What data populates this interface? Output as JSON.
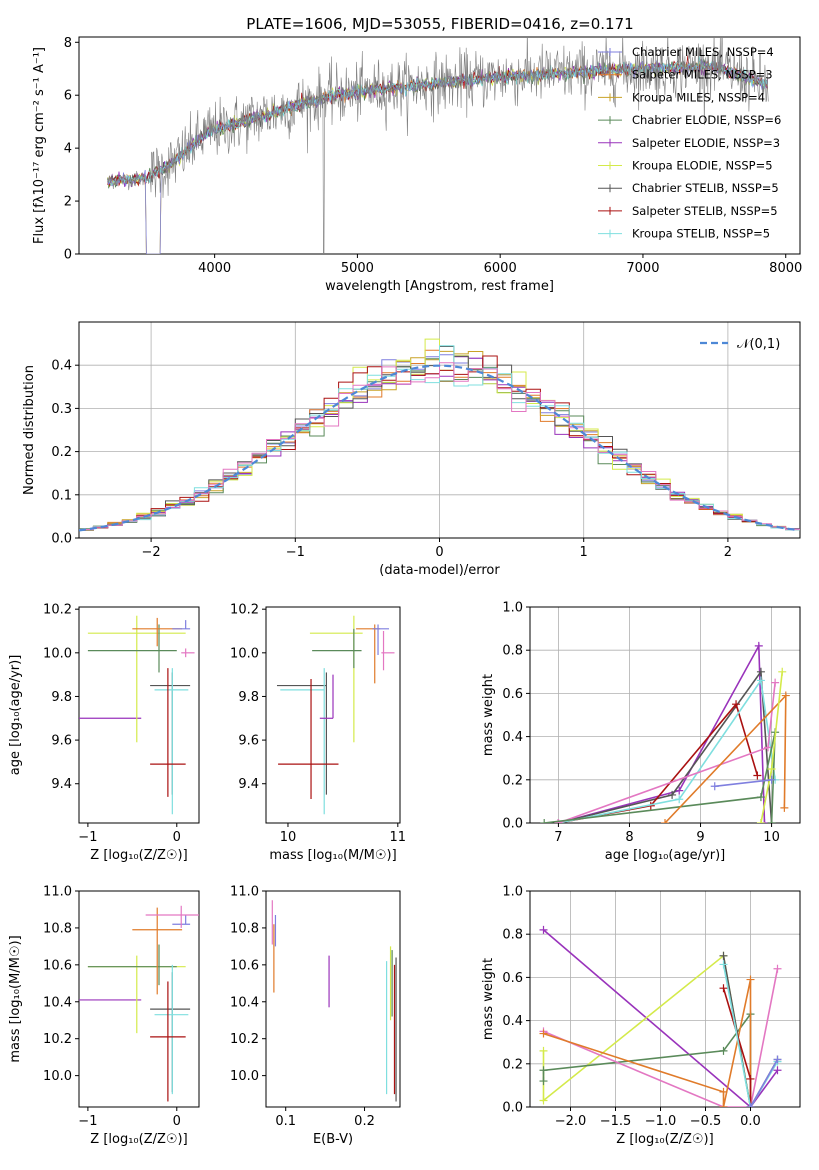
{
  "figure_title": "PLATE=1606, MJD=53055, FIBERID=0416, z=0.171",
  "colors": {
    "chabrier_miles": "#7f7fdf",
    "salpeter_miles": "#e07b2a",
    "kroupa_miles": "#c9a227",
    "chabrier_elodie": "#5a8a5a",
    "salpeter_elodie": "#9933bb",
    "kroupa_elodie": "#d4ea4a",
    "chabrier_stelib": "#555555",
    "salpeter_stelib": "#aa1111",
    "kroupa_stelib": "#7fdfdf",
    "pink": "#e377c2",
    "blue_dash": "#4d88d6",
    "data_gray": "#7f7f7f"
  },
  "chart_data": [
    {
      "id": "spectrum",
      "type": "line",
      "title": "PLATE=1606, MJD=53055, FIBERID=0416, z=0.171",
      "xlabel": "wavelength [Angstrom, rest frame]",
      "ylabel": "Flux [fλ10⁻¹⁷ erg cm⁻² s⁻¹ A⁻¹]",
      "xlim": [
        3050,
        8100
      ],
      "ylim": [
        0,
        8.2
      ],
      "xticks": [
        4000,
        5000,
        6000,
        7000,
        8000
      ],
      "yticks": [
        0,
        2,
        4,
        6,
        8
      ],
      "grid": false,
      "legend_position": "top-right",
      "legend": [
        "Chabrier MILES, NSSP=4",
        "Salpeter MILES, NSSP=3",
        "Kroupa MILES, NSSP=4",
        "Chabrier ELODIE, NSSP=6",
        "Salpeter ELODIE, NSSP=3",
        "Kroupa ELODIE, NSSP=5",
        "Chabrier STELIB, NSSP=5",
        "Salpeter STELIB, NSSP=5",
        "Kroupa STELIB, NSSP=5"
      ],
      "continuum": [
        [
          3250,
          2.75
        ],
        [
          3500,
          2.85
        ],
        [
          3700,
          3.4
        ],
        [
          3950,
          4.6
        ],
        [
          4200,
          5.0
        ],
        [
          4500,
          5.5
        ],
        [
          4800,
          5.95
        ],
        [
          5100,
          6.2
        ],
        [
          5500,
          6.4
        ],
        [
          6000,
          6.7
        ],
        [
          6500,
          6.85
        ],
        [
          7000,
          7.0
        ],
        [
          7500,
          7.1
        ],
        [
          7900,
          6.3
        ]
      ]
    },
    {
      "id": "residuals",
      "type": "line",
      "xlabel": "(data-model)/error",
      "ylabel": "Normed distribution",
      "xlim": [
        -2.5,
        2.5
      ],
      "ylim": [
        0,
        0.5
      ],
      "xticks": [
        -2,
        -1,
        0,
        1,
        2
      ],
      "yticks": [
        0.0,
        0.1,
        0.2,
        0.3,
        0.4
      ],
      "grid": true,
      "legend_position": "top-right",
      "legend": [
        "𝒩(0,1)"
      ],
      "gaussian": {
        "mean": 0,
        "sigma": 1
      }
    },
    {
      "id": "age_vs_z",
      "type": "scatter",
      "xlabel": "Z [log₁₀(Z/Z☉)]",
      "ylabel": "age  [log₁₀(age/yr)]",
      "xlim": [
        -1.1,
        0.25
      ],
      "ylim": [
        9.22,
        10.21
      ],
      "xticks": [
        -1,
        0
      ],
      "yticks": [
        9.4,
        9.6,
        9.8,
        10.0,
        10.2
      ],
      "grid": false,
      "points": [
        {
          "key": "salpeter_elodie",
          "x": -0.75,
          "xerr": [
            0.35,
            0.35
          ],
          "y": 9.7,
          "yerr": [
            0,
            0
          ]
        },
        {
          "key": "kroupa_elodie",
          "x": -0.45,
          "xerr": [
            0.55,
            0.55
          ],
          "y": 10.09,
          "yerr": [
            0.5,
            0.08
          ]
        },
        {
          "key": "chabrier_elodie",
          "x": -0.2,
          "xerr": [
            0.8,
            0.2
          ],
          "y": 10.01,
          "yerr": [
            0.1,
            0.12
          ]
        },
        {
          "key": "salpeter_miles",
          "x": -0.22,
          "xerr": [
            0.28,
            0.28
          ],
          "y": 10.11,
          "yerr": [
            0.08,
            0.05
          ]
        },
        {
          "key": "chabrier_miles",
          "x": 0.1,
          "xerr": [
            0.15,
            0.05
          ],
          "y": 10.11,
          "yerr": [
            0,
            0.04
          ]
        },
        {
          "key": "pink",
          "x": 0.1,
          "xerr": [
            0.05,
            0.1
          ],
          "y": 10.0,
          "yerr": [
            0.02,
            0.02
          ]
        },
        {
          "key": "chabrier_stelib",
          "x": -0.05,
          "xerr": [
            0.25,
            0.2
          ],
          "y": 9.85,
          "yerr": [
            0.5,
            0.06
          ]
        },
        {
          "key": "kroupa_stelib",
          "x": -0.05,
          "xerr": [
            0.2,
            0.18
          ],
          "y": 9.83,
          "yerr": [
            0.57,
            0.1
          ]
        },
        {
          "key": "salpeter_stelib",
          "x": -0.1,
          "xerr": [
            0.2,
            0.2
          ],
          "y": 9.49,
          "yerr": [
            0.15,
            0.44
          ]
        }
      ]
    },
    {
      "id": "age_vs_mass",
      "type": "scatter",
      "xlabel": "mass [log₁₀(M/M☉)]",
      "ylabel": "",
      "xlim": [
        9.8,
        11.02
      ],
      "ylim": [
        9.22,
        10.21
      ],
      "xticks": [
        10,
        11
      ],
      "yticks": [
        9.4,
        9.6,
        9.8,
        10.0,
        10.2
      ],
      "grid": false,
      "points": [
        {
          "key": "chabrier_stelib",
          "x": 10.35,
          "xerr": [
            0.45,
            0.0
          ],
          "y": 9.85,
          "yerr": [
            0.5,
            0.06
          ]
        },
        {
          "key": "kroupa_stelib",
          "x": 10.33,
          "xerr": [
            0.4,
            0.0
          ],
          "y": 9.83,
          "yerr": [
            0.57,
            0.1
          ]
        },
        {
          "key": "salpeter_stelib",
          "x": 10.21,
          "xerr": [
            0.3,
            0.25
          ],
          "y": 9.49,
          "yerr": [
            0.16,
            0.39
          ]
        },
        {
          "key": "kroupa_elodie",
          "x": 10.6,
          "xerr": [
            0.4,
            0.08
          ],
          "y": 10.09,
          "yerr": [
            0.5,
            0.08
          ]
        },
        {
          "key": "chabrier_elodie",
          "x": 10.6,
          "xerr": [
            0.38,
            0.07
          ],
          "y": 10.01,
          "yerr": [
            0.08,
            0.1
          ]
        },
        {
          "key": "salpeter_elodie",
          "x": 10.41,
          "xerr": [
            0.12,
            0.0
          ],
          "y": 9.7,
          "yerr": [
            0,
            0.2
          ]
        },
        {
          "key": "salpeter_miles",
          "x": 10.79,
          "xerr": [
            0.17,
            0.05
          ],
          "y": 10.11,
          "yerr": [
            0.25,
            0.02
          ]
        },
        {
          "key": "chabrier_miles",
          "x": 10.82,
          "xerr": [
            0.05,
            0.1
          ],
          "y": 10.11,
          "yerr": [
            0.12,
            0.02
          ]
        },
        {
          "key": "pink",
          "x": 10.87,
          "xerr": [
            0.02,
            0.1
          ],
          "y": 10.0,
          "yerr": [
            0.08,
            0.1
          ]
        }
      ]
    },
    {
      "id": "weight_vs_age",
      "type": "line",
      "xlabel": "age  [log₁₀(age/yr)]",
      "ylabel": "mass weight",
      "xlim": [
        6.6,
        10.4
      ],
      "ylim": [
        0,
        1
      ],
      "xticks": [
        7,
        8,
        9,
        10
      ],
      "yticks": [
        0.0,
        0.2,
        0.4,
        0.6,
        0.8,
        1.0
      ],
      "grid": true,
      "series": [
        {
          "key": "salpeter_elodie",
          "points": [
            [
              7.0,
              0.0
            ],
            [
              8.7,
              0.15
            ],
            [
              9.82,
              0.82
            ],
            [
              9.9,
              0.0
            ]
          ]
        },
        {
          "key": "chabrier_stelib",
          "points": [
            [
              7.0,
              0.0
            ],
            [
              8.6,
              0.13
            ],
            [
              9.85,
              0.7
            ],
            [
              10.0,
              0.0
            ]
          ]
        },
        {
          "key": "salpeter_stelib",
          "points": [
            [
              7.0,
              0.0
            ],
            [
              8.3,
              0.08
            ],
            [
              9.5,
              0.55
            ],
            [
              9.8,
              0.22
            ]
          ]
        },
        {
          "key": "kroupa_stelib",
          "points": [
            [
              7.0,
              0.0
            ],
            [
              8.7,
              0.11
            ],
            [
              9.85,
              0.66
            ],
            [
              10.05,
              0.2
            ]
          ]
        },
        {
          "key": "pink",
          "points": [
            [
              7.0,
              0.0
            ],
            [
              9.95,
              0.35
            ],
            [
              10.05,
              0.65
            ]
          ]
        },
        {
          "key": "chabrier_elodie",
          "points": [
            [
              6.8,
              0.0
            ],
            [
              9.85,
              0.12
            ],
            [
              10.05,
              0.42
            ],
            [
              10.0,
              0.0
            ]
          ]
        },
        {
          "key": "salpeter_miles",
          "points": [
            [
              8.5,
              0.0
            ],
            [
              10.2,
              0.59
            ],
            [
              10.18,
              0.07
            ]
          ]
        },
        {
          "key": "kroupa_elodie",
          "points": [
            [
              9.85,
              0.0
            ],
            [
              10.0,
              0.25
            ],
            [
              10.15,
              0.7
            ]
          ]
        },
        {
          "key": "chabrier_miles",
          "points": [
            [
              9.2,
              0.17
            ],
            [
              10.0,
              0.2
            ]
          ]
        }
      ]
    },
    {
      "id": "mass_vs_z",
      "type": "scatter",
      "xlabel": "Z [log₁₀(Z/Z☉)]",
      "ylabel": "mass [log₁₀(M/M☉)]",
      "xlim": [
        -1.1,
        0.25
      ],
      "ylim": [
        9.83,
        11.0
      ],
      "xticks": [
        -1,
        0
      ],
      "yticks": [
        10.0,
        10.2,
        10.4,
        10.6,
        10.8,
        11.0
      ],
      "grid": false,
      "points": [
        {
          "key": "salpeter_elodie",
          "x": -0.75,
          "xerr": [
            0.35,
            0.35
          ],
          "y": 10.41,
          "yerr": [
            0,
            0
          ]
        },
        {
          "key": "kroupa_elodie",
          "x": -0.45,
          "xerr": [
            0.55,
            0.55
          ],
          "y": 10.59,
          "yerr": [
            0.36,
            0.06
          ]
        },
        {
          "key": "chabrier_elodie",
          "x": -0.2,
          "xerr": [
            0.8,
            0.2
          ],
          "y": 10.59,
          "yerr": [
            0.1,
            0.12
          ]
        },
        {
          "key": "salpeter_miles",
          "x": -0.22,
          "xerr": [
            0.28,
            0.28
          ],
          "y": 10.79,
          "yerr": [
            0.35,
            0.12
          ]
        },
        {
          "key": "chabrier_miles",
          "x": 0.1,
          "xerr": [
            0.15,
            0.05
          ],
          "y": 10.82,
          "yerr": [
            0,
            0.05
          ]
        },
        {
          "key": "pink",
          "x": 0.05,
          "xerr": [
            0.4,
            0.2
          ],
          "y": 10.87,
          "yerr": [
            0.07,
            0.05
          ]
        },
        {
          "key": "chabrier_stelib",
          "x": -0.05,
          "xerr": [
            0.25,
            0.2
          ],
          "y": 10.36,
          "yerr": [
            0.45,
            0.2
          ]
        },
        {
          "key": "kroupa_stelib",
          "x": -0.05,
          "xerr": [
            0.2,
            0.18
          ],
          "y": 10.33,
          "yerr": [
            0.43,
            0.27
          ]
        },
        {
          "key": "salpeter_stelib",
          "x": -0.1,
          "xerr": [
            0.2,
            0.2
          ],
          "y": 10.21,
          "yerr": [
            0.35,
            0.3
          ]
        }
      ]
    },
    {
      "id": "mass_vs_ebv",
      "type": "scatter",
      "xlabel": "E(B-V)",
      "ylabel": "",
      "xlim": [
        0.075,
        0.245
      ],
      "ylim": [
        9.83,
        11.0
      ],
      "xticks": [
        0.1,
        0.2
      ],
      "yticks": [
        10.0,
        10.2,
        10.4,
        10.6,
        10.8,
        11.0
      ],
      "grid": false,
      "points": [
        {
          "key": "pink",
          "x": 0.083,
          "xerr": [
            0,
            0
          ],
          "y": 10.8,
          "yerr": [
            0.09,
            0.15
          ]
        },
        {
          "key": "salpeter_miles",
          "x": 0.085,
          "xerr": [
            0,
            0
          ],
          "y": 10.7,
          "yerr": [
            0.25,
            0.12
          ]
        },
        {
          "key": "chabrier_miles",
          "x": 0.087,
          "xerr": [
            0,
            0
          ],
          "y": 10.8,
          "yerr": [
            0.1,
            0.07
          ]
        },
        {
          "key": "salpeter_elodie",
          "x": 0.155,
          "xerr": [
            0,
            0
          ],
          "y": 10.5,
          "yerr": [
            0.13,
            0.15
          ]
        },
        {
          "key": "kroupa_stelib",
          "x": 0.228,
          "xerr": [
            0,
            0
          ],
          "y": 10.3,
          "yerr": [
            0.4,
            0.32
          ]
        },
        {
          "key": "chabrier_elodie",
          "x": 0.235,
          "xerr": [
            0,
            0
          ],
          "y": 10.5,
          "yerr": [
            0.18,
            0.18
          ]
        },
        {
          "key": "salpeter_stelib",
          "x": 0.238,
          "xerr": [
            0,
            0
          ],
          "y": 10.3,
          "yerr": [
            0.4,
            0.3
          ]
        },
        {
          "key": "chabrier_stelib",
          "x": 0.24,
          "xerr": [
            0,
            0
          ],
          "y": 10.3,
          "yerr": [
            0.44,
            0.34
          ]
        },
        {
          "key": "kroupa_elodie",
          "x": 0.233,
          "xerr": [
            0,
            0
          ],
          "y": 10.5,
          "yerr": [
            0.2,
            0.2
          ]
        }
      ]
    },
    {
      "id": "weight_vs_z",
      "type": "line",
      "xlabel": "Z [log₁₀(Z/Z☉)]",
      "ylabel": "mass weight",
      "xlim": [
        -2.45,
        0.55
      ],
      "ylim": [
        0,
        1
      ],
      "xticks": [
        -2.0,
        -1.5,
        -1.0,
        -0.5,
        0.0
      ],
      "yticks": [
        0.0,
        0.2,
        0.4,
        0.6,
        0.8,
        1.0
      ],
      "grid": true,
      "series": [
        {
          "key": "salpeter_elodie",
          "points": [
            [
              -2.3,
              0.82
            ],
            [
              0.0,
              0.0
            ],
            [
              0.3,
              0.17
            ]
          ]
        },
        {
          "key": "kroupa_elodie",
          "points": [
            [
              -2.3,
              0.26
            ],
            [
              -2.3,
              0.03
            ],
            [
              -0.3,
              0.7
            ],
            [
              0.0,
              0.0
            ]
          ]
        },
        {
          "key": "chabrier_elodie",
          "points": [
            [
              -2.3,
              0.12
            ],
            [
              -2.3,
              0.17
            ],
            [
              -0.3,
              0.26
            ],
            [
              0.0,
              0.43
            ],
            [
              0.0,
              0.0
            ]
          ]
        },
        {
          "key": "pink",
          "points": [
            [
              -2.3,
              0.35
            ],
            [
              -0.3,
              0.0
            ],
            [
              0.0,
              0.0
            ],
            [
              0.3,
              0.64
            ]
          ]
        },
        {
          "key": "salpeter_miles",
          "points": [
            [
              -2.3,
              0.34
            ],
            [
              -0.3,
              0.07
            ],
            [
              -0.3,
              0.0
            ],
            [
              0.0,
              0.59
            ],
            [
              0.0,
              0.0
            ]
          ]
        },
        {
          "key": "chabrier_stelib",
          "points": [
            [
              -0.3,
              0.7
            ],
            [
              0.0,
              0.0
            ],
            [
              0.3,
              0.22
            ]
          ]
        },
        {
          "key": "salpeter_stelib",
          "points": [
            [
              -0.3,
              0.55
            ],
            [
              0.0,
              0.13
            ],
            [
              0.0,
              0.0
            ]
          ]
        },
        {
          "key": "kroupa_stelib",
          "points": [
            [
              -0.3,
              0.66
            ],
            [
              0.0,
              0.0
            ],
            [
              0.3,
              0.21
            ]
          ]
        },
        {
          "key": "chabrier_miles",
          "points": [
            [
              0.0,
              0.0
            ],
            [
              0.3,
              0.22
            ]
          ]
        }
      ]
    }
  ]
}
